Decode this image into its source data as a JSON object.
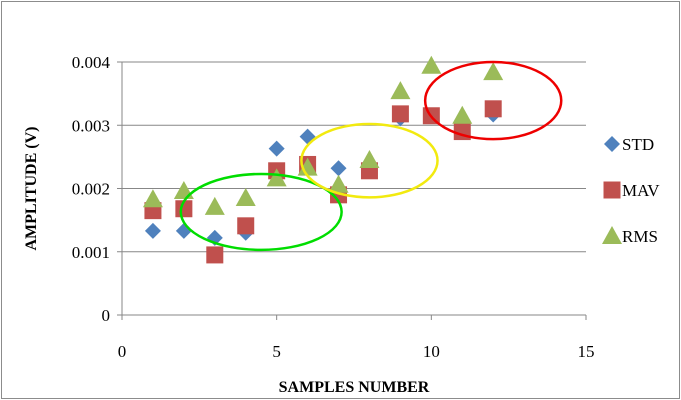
{
  "chart_data": {
    "type": "scatter",
    "title": "",
    "xlabel": "SAMPLES NUMBER",
    "ylabel": "AMPLITUDE (V)",
    "xlim": [
      0,
      15
    ],
    "ylim": [
      0,
      0.004
    ],
    "x_ticks": [
      "0",
      "5",
      "10",
      "15"
    ],
    "y_ticks": [
      "0",
      "0.001",
      "0.002",
      "0.003",
      "0.004"
    ],
    "grid": "horizontal",
    "legend_position": "right",
    "series": [
      {
        "name": "STD",
        "marker": "diamond",
        "color": "#4f81bd",
        "x": [
          1,
          2,
          3,
          4,
          5,
          6,
          7,
          8,
          9,
          10,
          11,
          12
        ],
        "y": [
          0.00133,
          0.00133,
          0.00122,
          0.0013,
          0.00263,
          0.00282,
          0.00232,
          0.00238,
          0.00311,
          0.00315,
          0.00303,
          0.00317
        ]
      },
      {
        "name": "MAV",
        "marker": "square",
        "color": "#c0504d",
        "x": [
          1,
          2,
          3,
          4,
          5,
          6,
          7,
          8,
          9,
          10,
          11,
          12
        ],
        "y": [
          0.00165,
          0.00168,
          0.00095,
          0.00141,
          0.00228,
          0.00238,
          0.0019,
          0.00228,
          0.00318,
          0.00315,
          0.0029,
          0.00326
        ]
      },
      {
        "name": "RMS",
        "marker": "triangle",
        "color": "#9bbb59",
        "x": [
          1,
          2,
          3,
          4,
          5,
          6,
          7,
          8,
          9,
          10,
          11,
          12
        ],
        "y": [
          0.00183,
          0.00196,
          0.00171,
          0.00185,
          0.00216,
          0.00233,
          0.00206,
          0.00245,
          0.00354,
          0.00394,
          0.00315,
          0.00384
        ]
      }
    ],
    "annotations": [
      {
        "shape": "ellipse",
        "color": "#00dd00",
        "cx": 4.5,
        "cy": 0.00163,
        "rx": 2.6,
        "ry": 0.0006
      },
      {
        "shape": "ellipse",
        "color": "#f2ea0f",
        "cx": 8.0,
        "cy": 0.00244,
        "rx": 2.2,
        "ry": 0.00058
      },
      {
        "shape": "ellipse",
        "color": "#ee0000",
        "cx": 12.0,
        "cy": 0.00339,
        "rx": 2.2,
        "ry": 0.00061
      }
    ]
  }
}
